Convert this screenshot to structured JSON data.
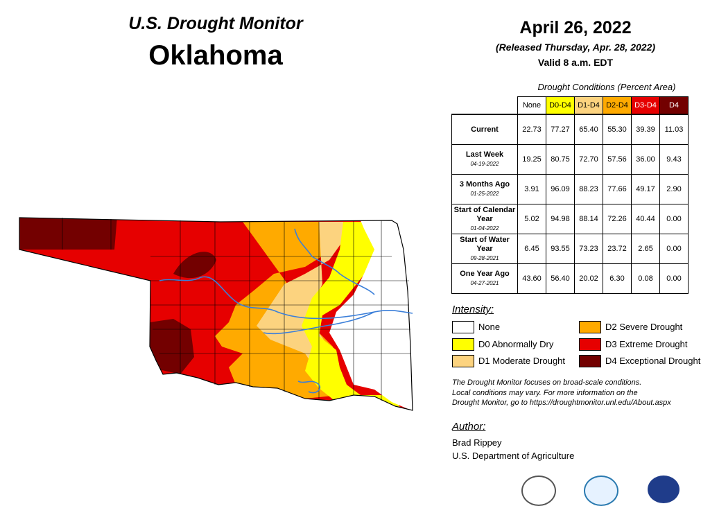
{
  "header": {
    "title": "U.S. Drought Monitor",
    "state": "Oklahoma",
    "date": "April 26, 2022",
    "released": "(Released Thursday, Apr. 28, 2022)",
    "valid": "Valid 8 a.m. EDT"
  },
  "table": {
    "caption": "Drought Conditions (Percent Area)",
    "columns": [
      {
        "label": "None",
        "color": "#ffffff",
        "text_color": "#000000"
      },
      {
        "label": "D0-D4",
        "color": "#ffff00",
        "text_color": "#000000"
      },
      {
        "label": "D1-D4",
        "color": "#fcd37f",
        "text_color": "#000000"
      },
      {
        "label": "D2-D4",
        "color": "#ffaa00",
        "text_color": "#000000"
      },
      {
        "label": "D3-D4",
        "color": "#e60000",
        "text_color": "#ffffff"
      },
      {
        "label": "D4",
        "color": "#730000",
        "text_color": "#ffffff"
      }
    ],
    "rows": [
      {
        "label": "Current",
        "sub": "",
        "values": [
          "22.73",
          "77.27",
          "65.40",
          "55.30",
          "39.39",
          "11.03"
        ]
      },
      {
        "label": "Last Week",
        "sub": "04-19-2022",
        "values": [
          "19.25",
          "80.75",
          "72.70",
          "57.56",
          "36.00",
          "9.43"
        ]
      },
      {
        "label": "3 Months Ago",
        "sub": "01-25-2022",
        "values": [
          "3.91",
          "96.09",
          "88.23",
          "77.66",
          "49.17",
          "2.90"
        ]
      },
      {
        "label": "Start of Calendar Year",
        "sub": "01-04-2022",
        "values": [
          "5.02",
          "94.98",
          "88.14",
          "72.26",
          "40.44",
          "0.00"
        ]
      },
      {
        "label": "Start of Water Year",
        "sub": "09-28-2021",
        "values": [
          "6.45",
          "93.55",
          "73.23",
          "23.72",
          "2.65",
          "0.00"
        ]
      },
      {
        "label": "One Year Ago",
        "sub": "04-27-2021",
        "values": [
          "43.60",
          "56.40",
          "20.02",
          "6.30",
          "0.08",
          "0.00"
        ]
      }
    ]
  },
  "legend": {
    "title": "Intensity:",
    "items": [
      {
        "label": "None",
        "color": "#ffffff"
      },
      {
        "label": "D0 Abnormally Dry",
        "color": "#ffff00"
      },
      {
        "label": "D1 Moderate Drought",
        "color": "#fcd37f"
      },
      {
        "label": "D2 Severe Drought",
        "color": "#ffaa00"
      },
      {
        "label": "D3 Extreme Drought",
        "color": "#e60000"
      },
      {
        "label": "D4 Exceptional Drought",
        "color": "#730000"
      }
    ]
  },
  "note": {
    "line1": "The Drought Monitor focuses on broad-scale conditions.",
    "line2": "Local conditions may vary. For more information on the",
    "line3": "Drought Monitor, go to https://droughtmonitor.unl.edu/About.aspx"
  },
  "author": {
    "heading": "Author:",
    "name": "Brad Rippey",
    "org": "U.S. Department of Agriculture"
  },
  "colors": {
    "none": "#ffffff",
    "d0": "#ffff00",
    "d1": "#fcd37f",
    "d2": "#ffaa00",
    "d3": "#e60000",
    "d4": "#730000",
    "river": "#3b7fd9"
  }
}
